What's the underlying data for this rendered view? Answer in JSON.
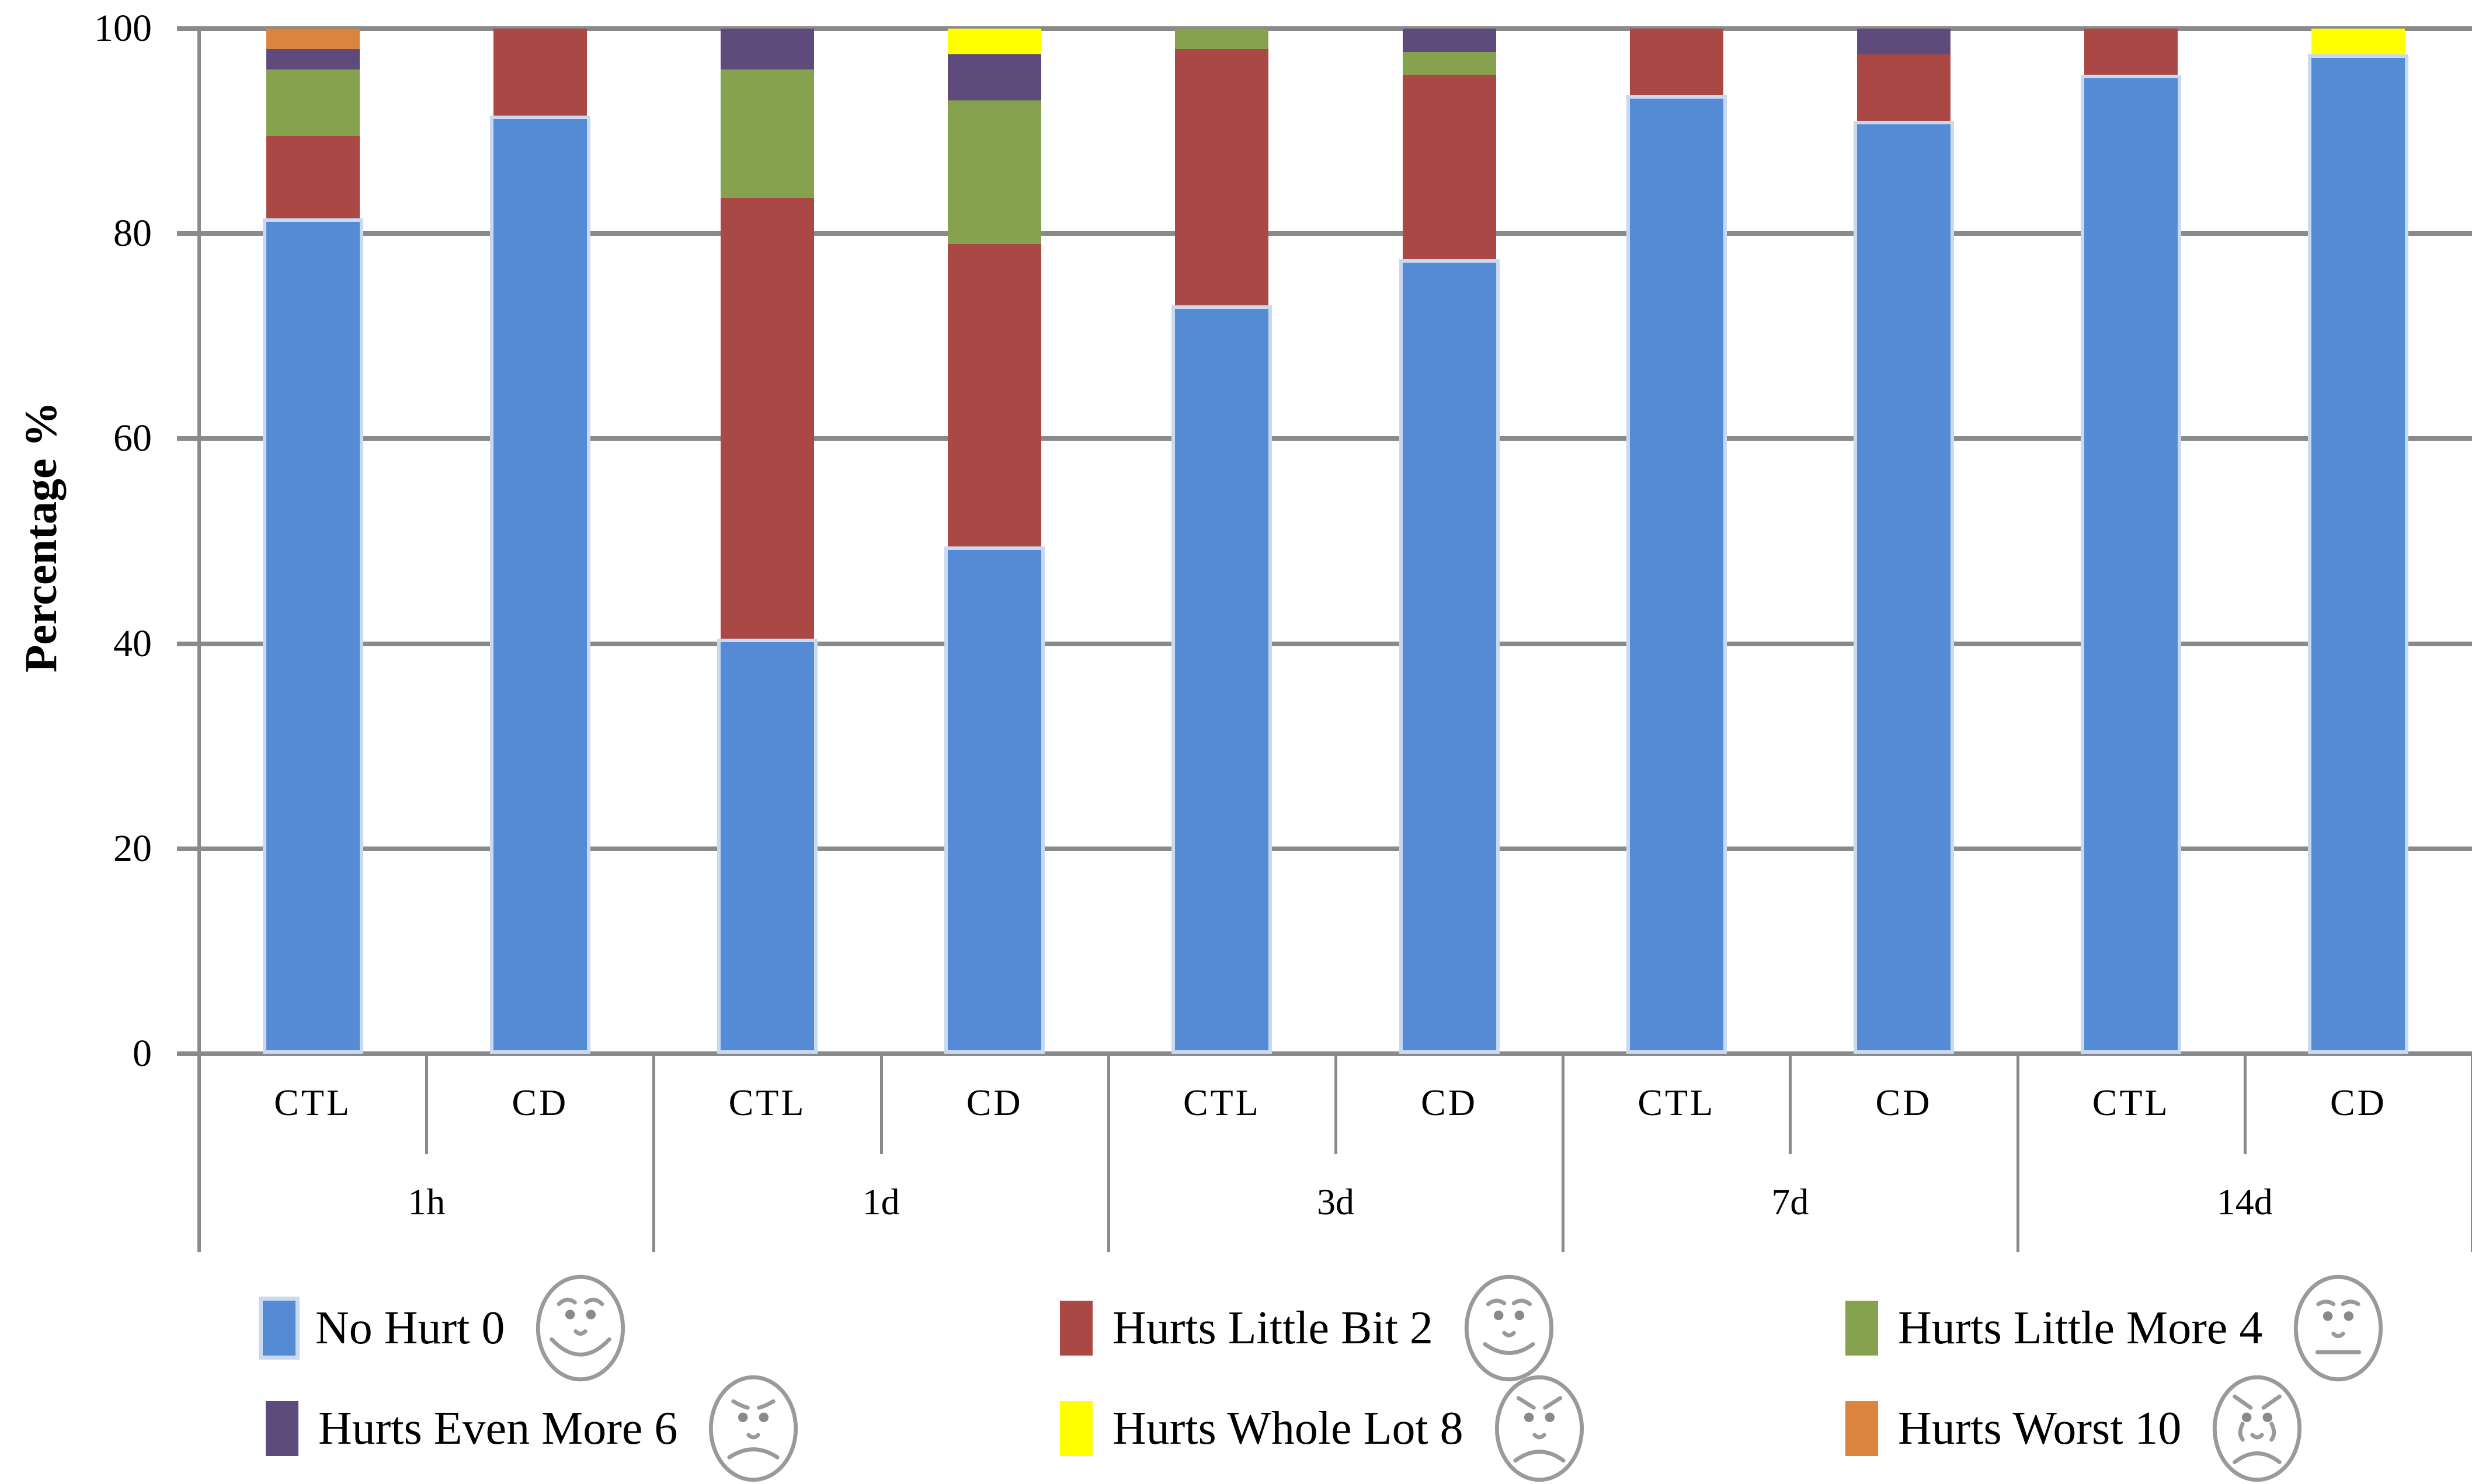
{
  "page": {
    "background": "#FFFFFF"
  },
  "y_axis": {
    "title": "Percentage %",
    "ticks": [
      0,
      20,
      40,
      60,
      80,
      100
    ],
    "tick_labels": [
      "0",
      "20",
      "40",
      "60",
      "80",
      "100"
    ]
  },
  "x_axis": {
    "bar_labels": [
      "CTL",
      "CD"
    ],
    "group_labels": [
      "1h",
      "1d",
      "3d",
      "7d",
      "14d"
    ]
  },
  "colors": {
    "grid": "#8A8A8A",
    "bar_border": "#C9D9F0",
    "no_hurt": "#548BD4",
    "hurts_little_bit": "#A94845",
    "hurts_little_more": "#87A24F",
    "hurts_even_more": "#5E4B7C",
    "hurts_whole_lot": "#FFFF00",
    "hurts_worst": "#DA8440"
  },
  "legend": {
    "rows": 2,
    "items_order": [
      "No Hurt 0",
      "Hurts Little Bit 2",
      "Hurts Little More 4",
      "Hurts Even More 6",
      "Hurts Whole Lot 8",
      "Hurts Worst 10"
    ],
    "face_icons": [
      "smiling-face",
      "slight-smile-face",
      "neutral-face",
      "slight-frown-face",
      "frowning-face",
      "crying-face"
    ]
  },
  "chart_data": {
    "type": "bar",
    "stacked": true,
    "stack_total": 100,
    "title": "",
    "xlabel": "",
    "ylabel": "Percentage %",
    "ylim": [
      0,
      100
    ],
    "grid": true,
    "legend_position": "bottom",
    "groups": [
      "1h",
      "1d",
      "3d",
      "7d",
      "14d"
    ],
    "bars_per_group": [
      "CTL",
      "CD"
    ],
    "categories": [
      "1h CTL",
      "1h CD",
      "1d CTL",
      "1d CD",
      "3d CTL",
      "3d CD",
      "7d CTL",
      "7d CD",
      "14d CTL",
      "14d CD"
    ],
    "series": [
      {
        "name": "No Hurt 0",
        "color": "#548BD4",
        "values": [
          81.5,
          91.5,
          40.5,
          49.5,
          73.0,
          77.5,
          93.5,
          91.0,
          95.5,
          97.5
        ]
      },
      {
        "name": "Hurts Little Bit 2",
        "color": "#A94845",
        "values": [
          8.0,
          8.5,
          43.0,
          29.5,
          25.0,
          18.0,
          6.5,
          6.5,
          4.5,
          0
        ]
      },
      {
        "name": "Hurts Little More 4",
        "color": "#87A24F",
        "values": [
          6.5,
          0,
          12.5,
          14.0,
          2.0,
          2.25,
          0,
          0,
          0,
          0
        ]
      },
      {
        "name": "Hurts Even More 6",
        "color": "#5E4B7C",
        "values": [
          2.0,
          0,
          4.0,
          4.5,
          0,
          2.25,
          0,
          2.5,
          0,
          0
        ]
      },
      {
        "name": "Hurts Whole Lot 8",
        "color": "#FFFF00",
        "values": [
          0,
          0,
          0,
          2.5,
          0,
          0,
          0,
          0,
          0,
          2.5
        ]
      },
      {
        "name": "Hurts Worst 10",
        "color": "#DA8440",
        "values": [
          2.0,
          0,
          0,
          0,
          0,
          0,
          0,
          0,
          0,
          0
        ]
      }
    ]
  }
}
